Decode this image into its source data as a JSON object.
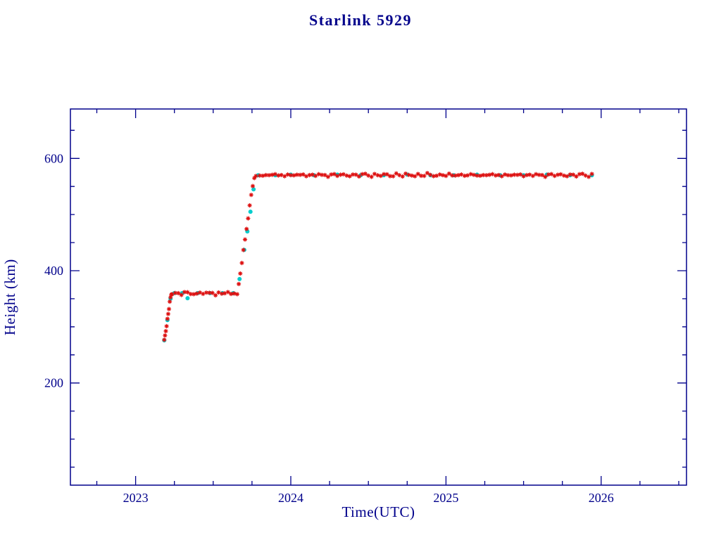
{
  "title": "Starlink 5929",
  "chart_data": {
    "type": "scatter",
    "title": "Starlink 5929",
    "xlabel": "Time(UTC)",
    "ylabel": "Height (km)",
    "xlim": [
      2022.58,
      2026.55
    ],
    "ylim": [
      18,
      688
    ],
    "xticks": [
      2023,
      2024,
      2025,
      2026
    ],
    "yticks": [
      200,
      400,
      600
    ],
    "x_minor_step": 0.25,
    "y_minor_step": 50,
    "grid": false,
    "legend": null,
    "frame_color": "#00008b",
    "text_color": "#00008b",
    "series": [
      {
        "name": "predicted",
        "color": "#00cdcd",
        "marker": "circle",
        "x": [
          2023.185,
          2023.205,
          2023.225,
          2023.25,
          2023.3,
          2023.335,
          2023.4,
          2023.48,
          2023.56,
          2023.63,
          2023.67,
          2023.7,
          2023.72,
          2023.74,
          2023.76,
          2023.79,
          2023.9,
          2024,
          2024.15,
          2024.3,
          2024.45,
          2024.6,
          2024.75,
          2024.9,
          2025.05,
          2025.2,
          2025.35,
          2025.5,
          2025.65,
          2025.8,
          2025.94
        ],
        "y": [
          276,
          312,
          350,
          360,
          360,
          351,
          360,
          360,
          360,
          360,
          385,
          437,
          470,
          505,
          545,
          570,
          570,
          571,
          570,
          571,
          570,
          570,
          571,
          570,
          570,
          571,
          570,
          570,
          571,
          570,
          570
        ]
      },
      {
        "name": "observed",
        "color": "#dd1111",
        "marker": "asterisk",
        "x": [
          2023.185,
          2023.19,
          2023.195,
          2023.2,
          2023.205,
          2023.21,
          2023.215,
          2023.22,
          2023.225,
          2023.23,
          2023.235,
          2023.255,
          2023.275,
          2023.295,
          2023.315,
          2023.335,
          2023.355,
          2023.375,
          2023.395,
          2023.415,
          2023.435,
          2023.455,
          2023.475,
          2023.495,
          2023.515,
          2023.535,
          2023.555,
          2023.575,
          2023.595,
          2023.615,
          2023.635,
          2023.655,
          2023.665,
          2023.675,
          2023.685,
          2023.695,
          2023.705,
          2023.715,
          2023.725,
          2023.735,
          2023.745,
          2023.755,
          2023.765,
          2023.775,
          2023.8,
          2023.82,
          2023.84,
          2023.86,
          2023.88,
          2023.9,
          2023.92,
          2023.94,
          2023.96,
          2023.98,
          2024,
          2024.02,
          2024.04,
          2024.06,
          2024.08,
          2024.1,
          2024.12,
          2024.14,
          2024.16,
          2024.18,
          2024.2,
          2024.22,
          2024.24,
          2024.26,
          2024.28,
          2024.3,
          2024.32,
          2024.34,
          2024.36,
          2024.38,
          2024.4,
          2024.42,
          2024.44,
          2024.46,
          2024.48,
          2024.5,
          2024.52,
          2024.54,
          2024.56,
          2024.58,
          2024.6,
          2024.62,
          2024.64,
          2024.66,
          2024.68,
          2024.7,
          2024.72,
          2024.74,
          2024.76,
          2024.78,
          2024.8,
          2024.82,
          2024.84,
          2024.86,
          2024.88,
          2024.9,
          2024.92,
          2024.94,
          2024.96,
          2024.98,
          2025,
          2025.02,
          2025.04,
          2025.06,
          2025.08,
          2025.1,
          2025.12,
          2025.14,
          2025.16,
          2025.18,
          2025.2,
          2025.22,
          2025.24,
          2025.26,
          2025.28,
          2025.3,
          2025.32,
          2025.34,
          2025.36,
          2025.38,
          2025.4,
          2025.42,
          2025.44,
          2025.46,
          2025.48,
          2025.5,
          2025.52,
          2025.54,
          2025.56,
          2025.58,
          2025.6,
          2025.62,
          2025.64,
          2025.66,
          2025.68,
          2025.7,
          2025.72,
          2025.74,
          2025.76,
          2025.78,
          2025.8,
          2025.82,
          2025.84,
          2025.86,
          2025.88,
          2025.9,
          2025.92,
          2025.94
        ],
        "y": [
          275,
          284,
          293,
          303,
          313,
          323,
          333,
          343,
          352,
          358,
          360,
          359,
          360,
          358,
          360,
          361,
          359,
          360,
          358,
          361,
          360,
          359,
          360,
          361,
          358,
          360,
          359,
          361,
          360,
          358,
          360,
          360,
          375,
          395,
          415,
          435,
          455,
          475,
          495,
          515,
          535,
          552,
          563,
          568,
          570,
          571,
          569,
          570,
          572,
          570,
          569,
          571,
          570,
          570,
          570,
          571,
          569,
          570,
          572,
          570,
          569,
          571,
          570,
          570,
          570,
          571,
          569,
          570,
          572,
          570,
          569,
          571,
          570,
          570,
          570,
          571,
          569,
          570,
          572,
          570,
          569,
          571,
          570,
          570,
          570,
          571,
          569,
          570,
          572,
          570,
          569,
          571,
          570,
          570,
          570,
          571,
          569,
          570,
          572,
          570,
          569,
          571,
          570,
          570,
          570,
          571,
          569,
          570,
          572,
          570,
          569,
          571,
          570,
          570,
          570,
          571,
          569,
          570,
          572,
          570,
          569,
          571,
          570,
          570,
          570,
          571,
          569,
          570,
          572,
          570,
          569,
          571,
          570,
          570,
          570,
          571,
          569,
          570,
          572,
          570,
          569,
          571,
          570,
          570,
          570,
          571,
          569,
          570,
          572,
          570,
          569,
          571
        ]
      }
    ]
  }
}
